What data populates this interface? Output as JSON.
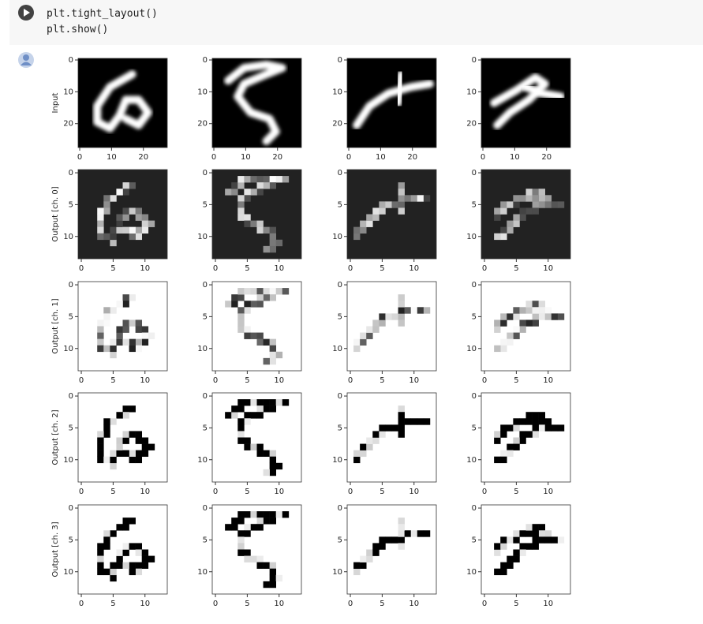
{
  "code": [
    "plt.tight_layout()",
    "plt.show()"
  ],
  "figure": {
    "row_labels": [
      "Input",
      "Output [ch. 0]",
      "Output [ch. 1]",
      "Output [ch. 2]",
      "Output [ch. 3]"
    ],
    "input_ticks": [
      0,
      10,
      20
    ],
    "output_ticks": [
      0,
      5,
      10
    ]
  }
}
